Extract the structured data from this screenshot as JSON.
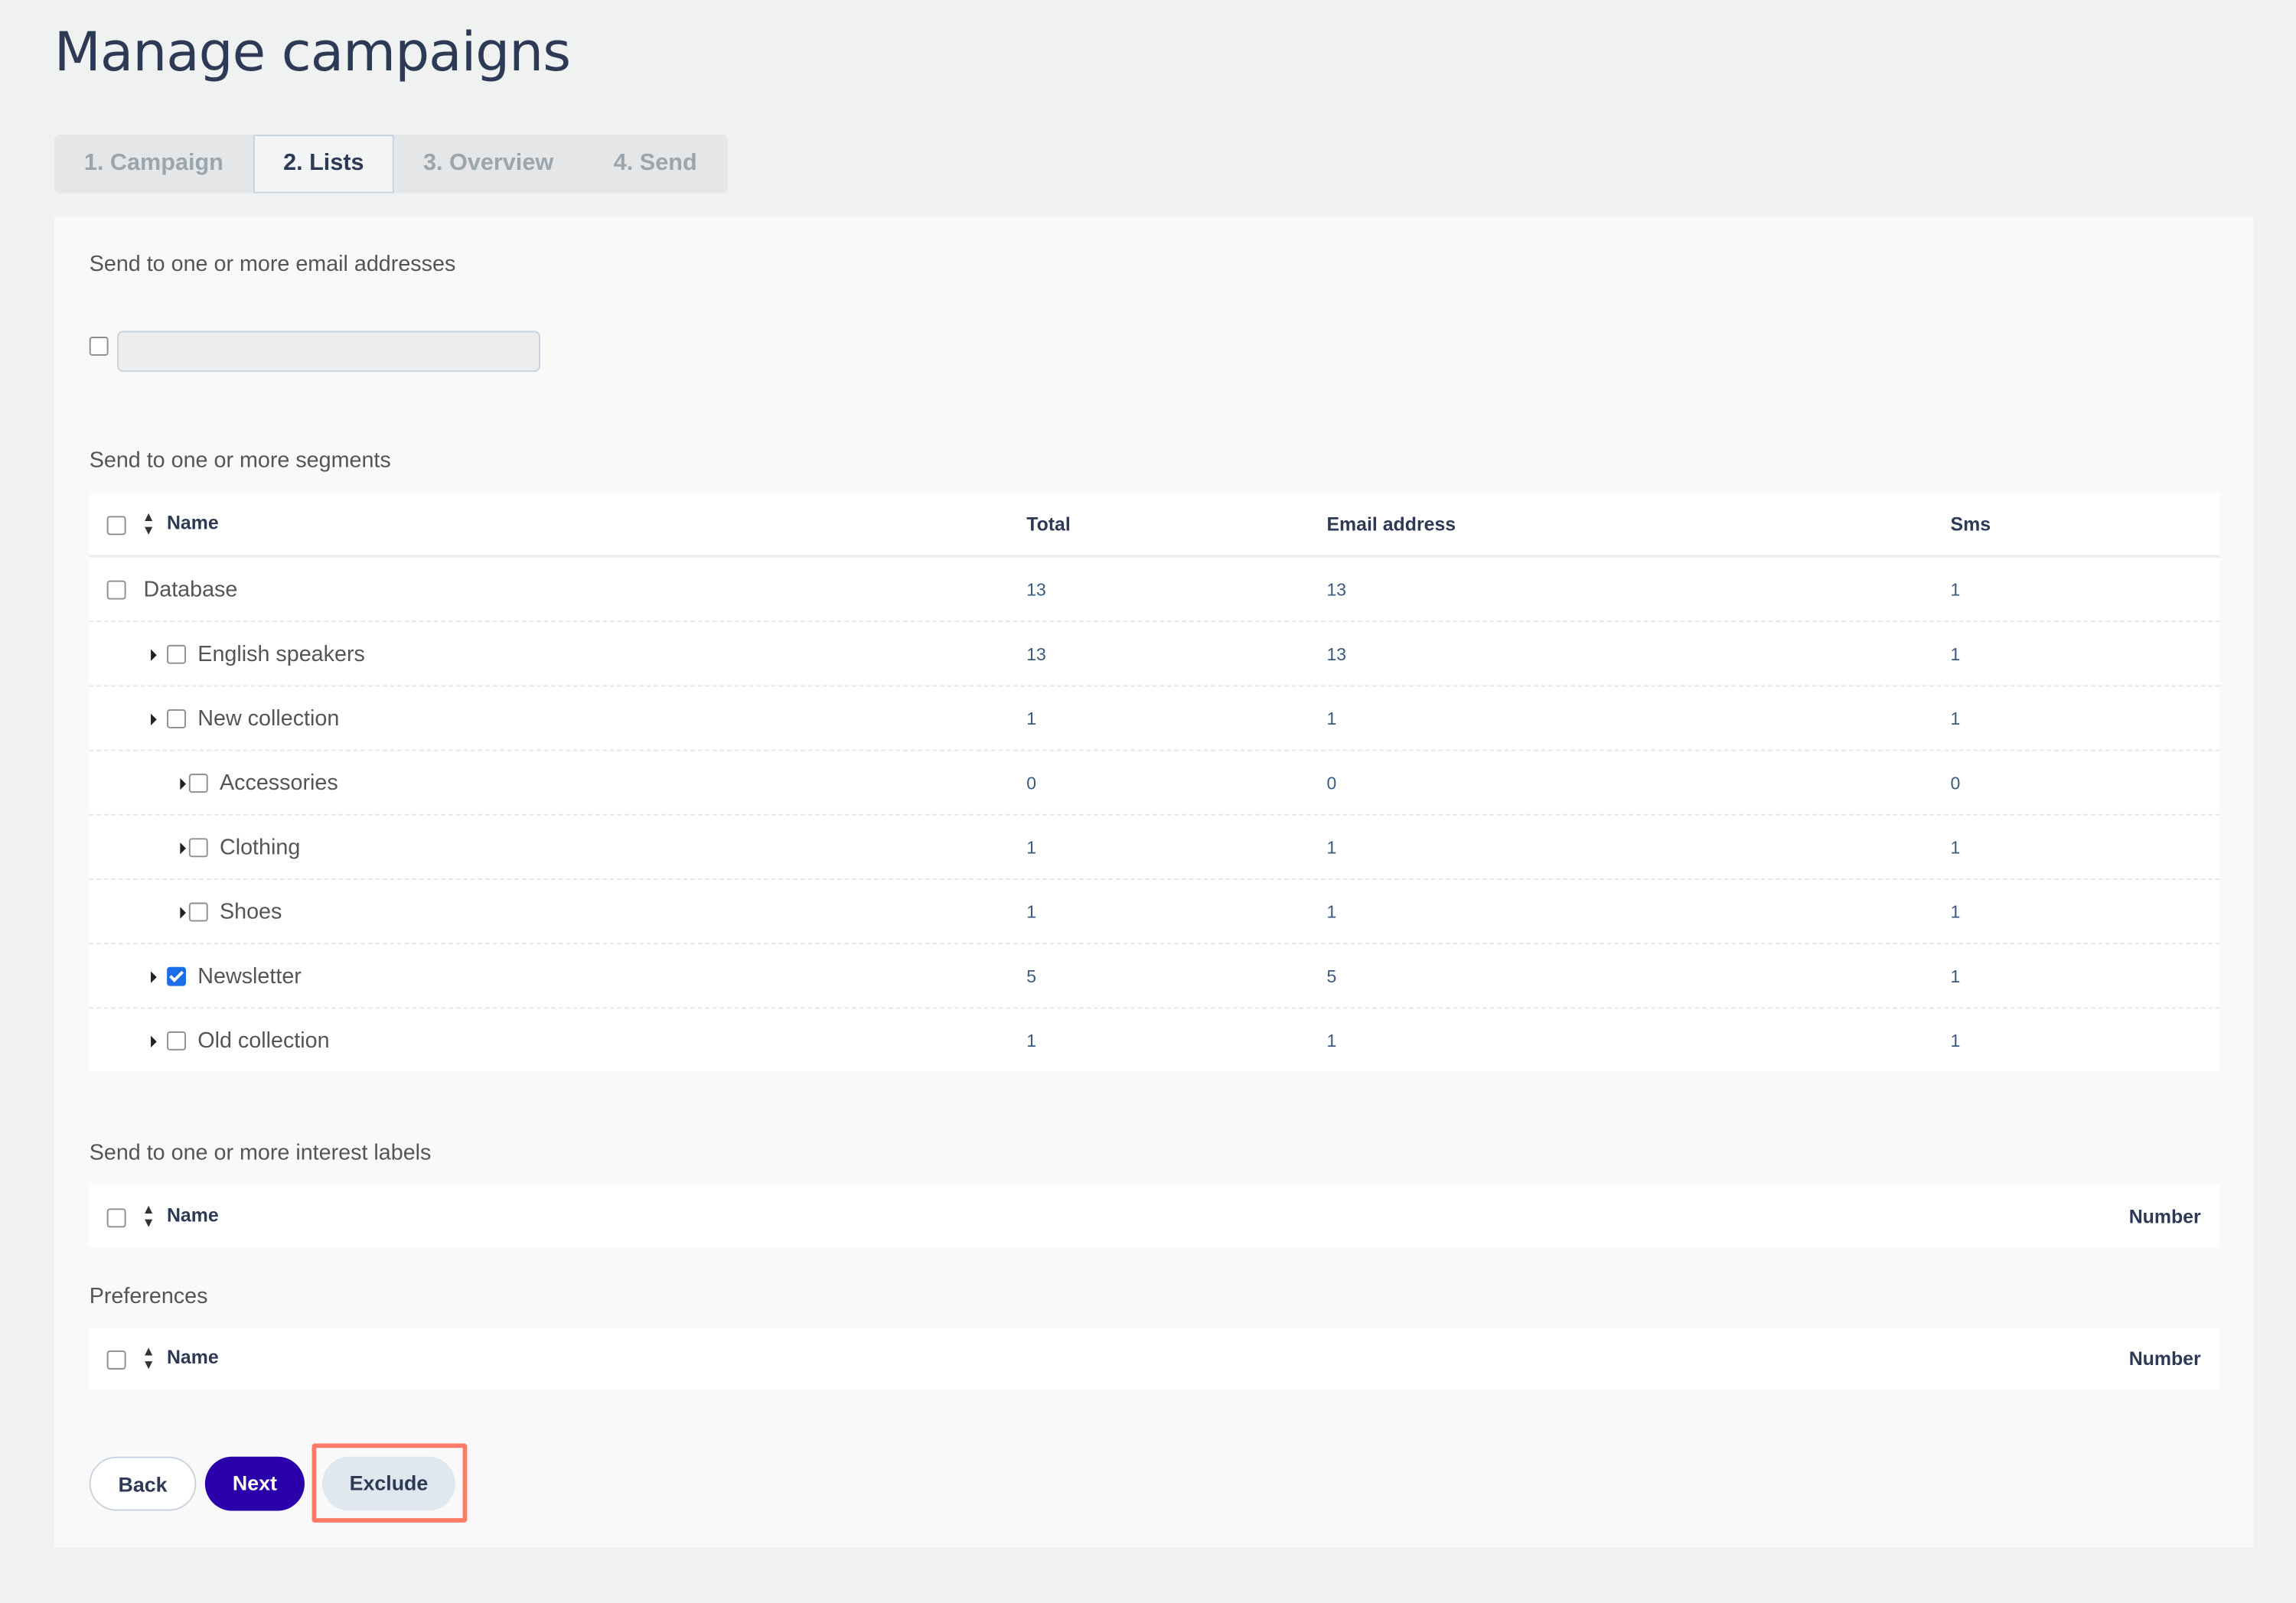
{
  "page_title": "Manage campaigns",
  "tabs": [
    {
      "label": "1. Campaign",
      "active": false
    },
    {
      "label": "2. Lists",
      "active": true
    },
    {
      "label": "3. Overview",
      "active": false
    },
    {
      "label": "4. Send",
      "active": false
    }
  ],
  "email_section": {
    "label": "Send to one or more email addresses",
    "input_value": "",
    "checked": false
  },
  "segments": {
    "label": "Send to one or more segments",
    "columns": [
      "Name",
      "Total",
      "Email address",
      "Sms"
    ],
    "rows": [
      {
        "name": "Database",
        "total": "13",
        "email": "13",
        "sms": "1",
        "checked": false
      },
      {
        "name": "English speakers",
        "total": "13",
        "email": "13",
        "sms": "1",
        "checked": false
      },
      {
        "name": "New collection",
        "total": "1",
        "email": "1",
        "sms": "1",
        "checked": false
      },
      {
        "name": "Accessories",
        "total": "0",
        "email": "0",
        "sms": "0",
        "checked": false
      },
      {
        "name": "Clothing",
        "total": "1",
        "email": "1",
        "sms": "1",
        "checked": false
      },
      {
        "name": "Shoes",
        "total": "1",
        "email": "1",
        "sms": "1",
        "checked": false
      },
      {
        "name": "Newsletter",
        "total": "5",
        "email": "5",
        "sms": "1",
        "checked": true
      },
      {
        "name": "Old collection",
        "total": "1",
        "email": "1",
        "sms": "1",
        "checked": false
      }
    ]
  },
  "interest_labels": {
    "label": "Send to one or more interest labels",
    "columns": [
      "Name",
      "Number"
    ]
  },
  "preferences": {
    "label": "Preferences",
    "columns": [
      "Name",
      "Number"
    ]
  },
  "buttons": {
    "back": "Back",
    "next": "Next",
    "exclude": "Exclude"
  },
  "colors": {
    "primary": "#2b00aa",
    "highlight": "#ff7a66",
    "text": "#2d3a55",
    "checkbox_checked": "#1a6fe8"
  }
}
